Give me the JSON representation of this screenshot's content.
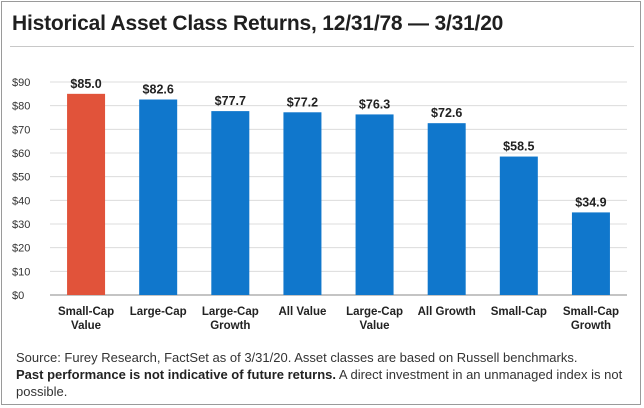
{
  "title": "Historical Asset Class Returns, 12/31/78 — 3/31/20",
  "colors": {
    "highlight": "#e1533a",
    "bar": "#1077cc",
    "grid": "#dcdcdc",
    "axis": "#888888"
  },
  "chart_data": {
    "type": "bar",
    "categories": [
      [
        "Small-Cap",
        "Value"
      ],
      [
        "Large-Cap"
      ],
      [
        "Large-Cap",
        "Growth"
      ],
      [
        "All Value"
      ],
      [
        "Large-Cap",
        "Value"
      ],
      [
        "All Growth"
      ],
      [
        "Small-Cap"
      ],
      [
        "Small-Cap",
        "Growth"
      ]
    ],
    "values": [
      85.0,
      82.6,
      77.7,
      77.2,
      76.3,
      72.6,
      58.5,
      34.9
    ],
    "data_labels": [
      "$85.0",
      "$82.6",
      "$77.7",
      "$77.2",
      "$76.3",
      "$72.6",
      "$58.5",
      "$34.9"
    ],
    "highlight_index": 0,
    "ylim": [
      0,
      90
    ],
    "yticks": [
      0,
      10,
      20,
      30,
      40,
      50,
      60,
      70,
      80,
      90
    ],
    "ytick_labels": [
      "$0",
      "$10",
      "$20",
      "$30",
      "$40",
      "$50",
      "$60",
      "$70",
      "$80",
      "$90"
    ],
    "grid": true,
    "legend": "none"
  },
  "footnote": {
    "source": "Source: Furey Research, FactSet as of 3/31/20. Asset classes are based on Russell benchmarks.",
    "disclaimer_bold": "Past performance is not indicative of future returns.",
    "disclaimer_rest": " A direct investment in an unmanaged index is not possible."
  }
}
